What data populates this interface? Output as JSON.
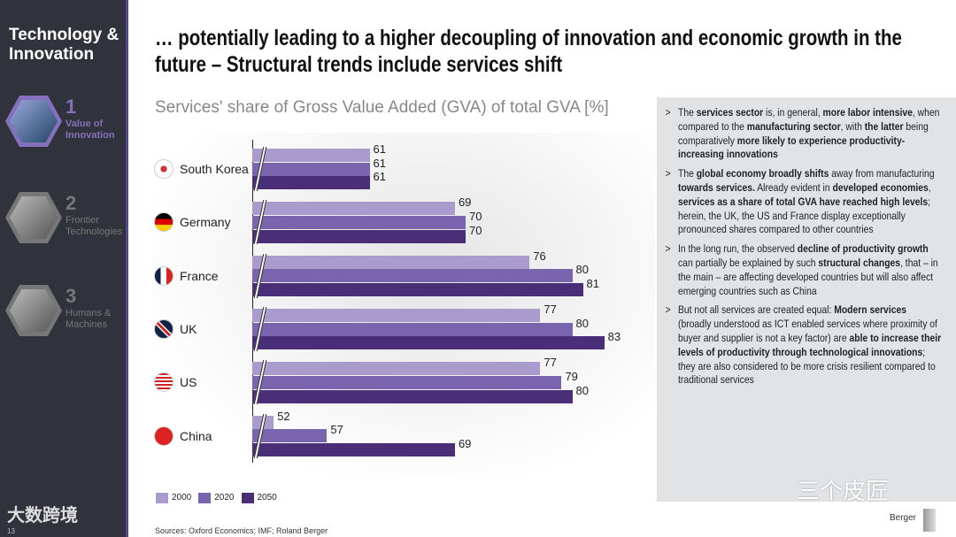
{
  "sidebar": {
    "title": "Technology & Innovation",
    "sections": [
      {
        "num": "1",
        "label": "Value of Innovation",
        "active": true
      },
      {
        "num": "2",
        "label": "Frontier Technologies",
        "active": false
      },
      {
        "num": "3",
        "label": "Humans & Machines",
        "active": false
      }
    ],
    "logo_text": "大数跨境",
    "page_number": "13"
  },
  "headline": "… potentially leading to a higher decoupling of innovation and economic growth in the future – Structural trends include services shift",
  "chart_data": {
    "type": "bar",
    "orientation": "horizontal",
    "title": "Services' share of Gross Value Added (GVA) of total GVA [%]",
    "categories": [
      "South Korea",
      "Germany",
      "France",
      "UK",
      "US",
      "China"
    ],
    "series": [
      {
        "name": "2000",
        "color": "#a99bcc",
        "values": [
          61,
          69,
          76,
          77,
          77,
          52
        ]
      },
      {
        "name": "2020",
        "color": "#7b64ae",
        "values": [
          61,
          70,
          80,
          80,
          79,
          57
        ]
      },
      {
        "name": "2050",
        "color": "#4a2f78",
        "values": [
          61,
          70,
          81,
          83,
          80,
          69
        ]
      }
    ],
    "axis_break": true,
    "xlim": [
      50,
      85
    ],
    "legend": "bottom-left"
  },
  "sources": "Sources: Oxford Economics; IMF; Roland Berger",
  "panel": {
    "bullets": [
      [
        {
          "t": "The "
        },
        {
          "t": "services sector",
          "b": 1
        },
        {
          "t": " is, in general, "
        },
        {
          "t": "more labor intensive",
          "b": 1
        },
        {
          "t": ", when compared to the "
        },
        {
          "t": "manufacturing sector",
          "b": 1
        },
        {
          "t": ", with "
        },
        {
          "t": "the latter",
          "b": 1
        },
        {
          "t": " being comparatively "
        },
        {
          "t": "more likely to experience productivity-increasing innovations",
          "b": 1
        }
      ],
      [
        {
          "t": "The "
        },
        {
          "t": "global economy broadly shifts",
          "b": 1
        },
        {
          "t": " away from manufacturing "
        },
        {
          "t": "towards services.",
          "b": 1
        },
        {
          "t": " Already evident in "
        },
        {
          "t": "developed economies",
          "b": 1
        },
        {
          "t": ", "
        },
        {
          "t": "services as a share of total GVA have reached high levels",
          "b": 1
        },
        {
          "t": "; herein, the UK, the US and France display exceptionally pronounced shares compared to other countries"
        }
      ],
      [
        {
          "t": "In the long run, the observed "
        },
        {
          "t": "decline of productivity growth",
          "b": 1
        },
        {
          "t": " can partially be explained by such "
        },
        {
          "t": "structural changes",
          "b": 1
        },
        {
          "t": ", that – in the main – are affecting developed countries but will also affect emerging countries such as China"
        }
      ],
      [
        {
          "t": "But not all services are created equal: "
        },
        {
          "t": "Modern services",
          "b": 1
        },
        {
          "t": " (broadly understood as ICT enabled services where proximity of buyer and supplier is not a key factor) are "
        },
        {
          "t": "able to increase their levels of productivity through technological innovations",
          "b": 1
        },
        {
          "t": "; they are also considered to be more crisis resilient compared to traditional services"
        }
      ]
    ]
  },
  "watermark": "三个皮匠",
  "brand": "Berger"
}
